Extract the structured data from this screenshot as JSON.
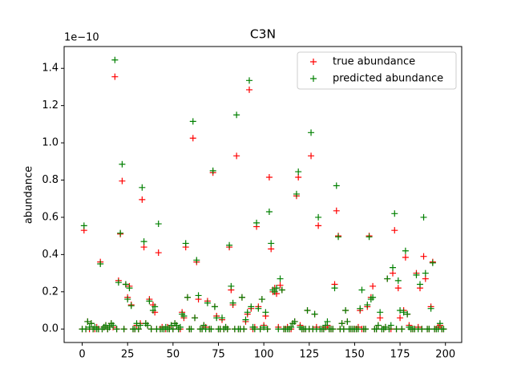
{
  "chart_data": {
    "type": "scatter",
    "title": "C3N",
    "y_label": "abundance",
    "y_offset_label": "1e−10",
    "xlim": [
      -9.95,
      208.95
    ],
    "ylim": [
      -0.0723,
      1.5173
    ],
    "xticks": [
      0,
      25,
      50,
      75,
      100,
      125,
      150,
      175,
      200
    ],
    "yticks": [
      {
        "value": 0,
        "label": "0.0"
      },
      0.2,
      0.4,
      0.6,
      0.8,
      {
        "value": 1,
        "label": "1.0"
      },
      1.2,
      1.4
    ],
    "legend": "upper right",
    "x": [
      0,
      1,
      2,
      3,
      4,
      5,
      6,
      7,
      8,
      9,
      10,
      11,
      12,
      13,
      14,
      15,
      16,
      17,
      18,
      19,
      20,
      21,
      22,
      23,
      24,
      25,
      26,
      27,
      28,
      29,
      30,
      31,
      32,
      33,
      34,
      35,
      36,
      37,
      38,
      39,
      40,
      41,
      42,
      43,
      44,
      45,
      46,
      47,
      48,
      49,
      50,
      51,
      52,
      53,
      54,
      55,
      56,
      57,
      58,
      59,
      60,
      61,
      62,
      63,
      64,
      65,
      66,
      67,
      68,
      69,
      70,
      71,
      72,
      73,
      74,
      75,
      76,
      77,
      78,
      79,
      80,
      81,
      82,
      83,
      84,
      85,
      86,
      87,
      88,
      89,
      90,
      91,
      92,
      93,
      94,
      95,
      96,
      97,
      98,
      99,
      100,
      101,
      102,
      103,
      104,
      105,
      106,
      107,
      108,
      109,
      110,
      111,
      112,
      113,
      114,
      115,
      116,
      117,
      118,
      119,
      120,
      121,
      122,
      123,
      124,
      125,
      126,
      127,
      128,
      129,
      130,
      131,
      132,
      133,
      134,
      135,
      136,
      137,
      138,
      139,
      140,
      141,
      142,
      143,
      144,
      145,
      146,
      147,
      148,
      149,
      150,
      151,
      152,
      153,
      154,
      155,
      156,
      157,
      158,
      159,
      160,
      161,
      162,
      163,
      164,
      165,
      166,
      167,
      168,
      169,
      170,
      171,
      172,
      173,
      174,
      175,
      176,
      177,
      178,
      179,
      180,
      181,
      182,
      183,
      184,
      185,
      186,
      187,
      188,
      189,
      190,
      191,
      192,
      193,
      194,
      195,
      196,
      197,
      198,
      199
    ],
    "series": [
      {
        "name": "true abundance",
        "color": "#ff0000",
        "values": [
          0.0,
          0.53,
          0.0,
          0.04,
          0.0,
          0.03,
          0.0,
          0.0,
          0.01,
          0.0,
          0.36,
          0.0,
          0.01,
          0.02,
          0.0,
          0.01,
          0.03,
          0.01,
          1.355,
          0.0,
          0.26,
          0.51,
          0.795,
          0.0,
          0.24,
          0.17,
          0.23,
          0.13,
          0.0,
          0.0,
          0.02,
          0.0,
          0.03,
          0.695,
          0.44,
          0.03,
          0.02,
          0.16,
          0.0,
          0.13,
          0.09,
          0.0,
          0.41,
          0.0,
          0.01,
          0.0,
          0.0,
          0.01,
          0.0,
          0.02,
          0.0,
          0.03,
          0.02,
          0.0,
          0.0,
          0.09,
          0.06,
          0.44,
          0.17,
          0.0,
          0.0,
          1.025,
          0.06,
          0.36,
          0.16,
          0.0,
          0.0,
          0.02,
          0.01,
          0.15,
          0.0,
          0.0,
          0.84,
          0.12,
          0.07,
          0.0,
          0.0,
          0.05,
          0.0,
          0.01,
          0.0,
          0.44,
          0.21,
          0.13,
          0.0,
          0.93,
          0.0,
          0.0,
          0.17,
          0.0,
          0.04,
          0.08,
          1.285,
          0.11,
          0.0,
          0.01,
          0.55,
          0.12,
          0.0,
          0.16,
          0.02,
          0.07,
          0.0,
          0.815,
          0.43,
          0.2,
          0.22,
          0.19,
          0.01,
          0.235,
          0.21,
          0.0,
          0.0,
          0.01,
          0.0,
          0.0,
          0.03,
          0.04,
          0.715,
          0.815,
          0.02,
          0.0,
          0.0,
          0.0,
          0.1,
          0.0,
          0.93,
          0.0,
          0.08,
          0.01,
          0.555,
          0.0,
          0.0,
          0.0,
          0.01,
          0.02,
          0.0,
          0.0,
          0.0,
          0.24,
          0.635,
          0.5,
          0.0,
          0.03,
          0.0,
          0.1,
          0.04,
          0.0,
          0.0,
          0.0,
          0.0,
          0.0,
          0.01,
          0.1,
          0.0,
          0.0,
          0.0,
          0.12,
          0.5,
          0.17,
          0.23,
          0.0,
          0.0,
          0.02,
          0.06,
          0.0,
          0.0,
          0.01,
          0.27,
          0.0,
          0.0,
          0.3,
          0.53,
          0.0,
          0.22,
          0.06,
          0.0,
          0.1,
          0.385,
          0.08,
          0.02,
          0.0,
          0.0,
          0.0,
          0.3,
          0.01,
          0.22,
          0.0,
          0.39,
          0.27,
          0.0,
          0.0,
          0.12,
          0.36,
          0.0,
          0.0,
          0.01,
          0.02,
          0.0,
          0.0
        ]
      },
      {
        "name": "predicted abundance",
        "color": "#008000",
        "values": [
          0.0,
          0.555,
          0.0,
          0.04,
          0.01,
          0.03,
          0.0,
          0.01,
          0.0,
          0.0,
          0.35,
          0.0,
          0.01,
          0.02,
          0.0,
          0.01,
          0.03,
          0.02,
          1.445,
          0.0,
          0.25,
          0.515,
          0.885,
          0.0,
          0.24,
          0.16,
          0.22,
          0.125,
          0.0,
          0.0,
          0.03,
          0.0,
          0.02,
          0.76,
          0.47,
          0.03,
          0.02,
          0.15,
          0.0,
          0.1,
          0.12,
          0.0,
          0.565,
          0.0,
          0.0,
          0.0,
          0.01,
          0.0,
          0.0,
          0.02,
          0.0,
          0.03,
          0.02,
          0.0,
          0.01,
          0.08,
          0.07,
          0.46,
          0.17,
          0.0,
          0.0,
          1.115,
          0.06,
          0.37,
          0.18,
          0.0,
          0.0,
          0.02,
          0.0,
          0.14,
          0.0,
          0.0,
          0.85,
          0.12,
          0.06,
          0.0,
          0.0,
          0.06,
          0.0,
          0.01,
          0.0,
          0.45,
          0.23,
          0.14,
          0.0,
          1.15,
          0.0,
          0.0,
          0.17,
          0.0,
          0.05,
          0.09,
          1.335,
          0.12,
          0.01,
          0.0,
          0.57,
          0.11,
          0.0,
          0.16,
          0.01,
          0.09,
          0.0,
          0.63,
          0.46,
          0.21,
          0.2,
          0.22,
          0.0,
          0.27,
          0.21,
          0.0,
          0.0,
          0.0,
          0.0,
          0.01,
          0.03,
          0.04,
          0.725,
          0.845,
          0.01,
          0.0,
          0.0,
          0.0,
          0.1,
          0.0,
          1.055,
          0.0,
          0.08,
          0.0,
          0.6,
          0.0,
          0.0,
          0.0,
          0.02,
          0.04,
          0.0,
          0.0,
          0.0,
          0.22,
          0.77,
          0.495,
          0.0,
          0.03,
          0.0,
          0.1,
          0.04,
          0.0,
          0.0,
          0.0,
          0.0,
          0.0,
          0.0,
          0.11,
          0.21,
          0.0,
          0.0,
          0.13,
          0.495,
          0.16,
          0.17,
          0.0,
          0.0,
          0.02,
          0.09,
          0.0,
          0.0,
          0.01,
          0.27,
          0.0,
          0.02,
          0.33,
          0.62,
          0.0,
          0.26,
          0.1,
          0.0,
          0.09,
          0.42,
          0.08,
          0.01,
          0.0,
          0.0,
          0.0,
          0.29,
          0.0,
          0.24,
          0.0,
          0.6,
          0.3,
          0.0,
          0.0,
          0.11,
          0.355,
          0.0,
          0.0,
          0.0,
          0.03,
          0.0,
          0.0
        ]
      }
    ]
  }
}
